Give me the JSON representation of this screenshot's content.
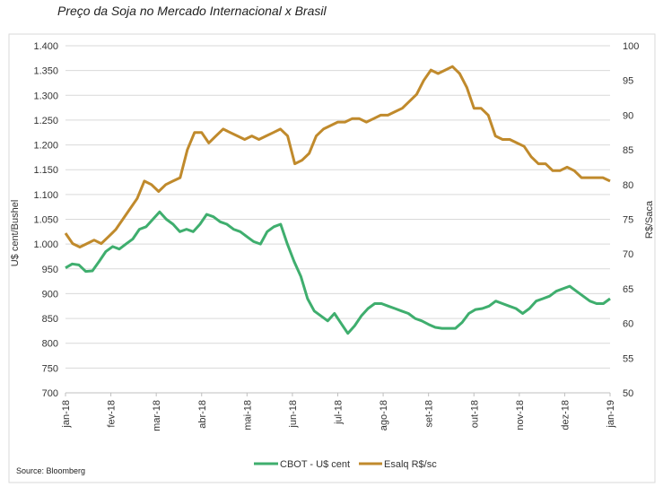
{
  "chart_data": {
    "type": "line",
    "title": "Preço da Soja no Mercado Internacional x Brasil",
    "source": "Source: Bloomberg",
    "ylabel_left": "U$ cent/Bushel",
    "ylabel_right": "R$/Saca",
    "ylim_left": [
      700,
      1400
    ],
    "ylim_right": [
      50,
      100
    ],
    "yticks_left": [
      "700",
      "750",
      "800",
      "850",
      "900",
      "950",
      "1.000",
      "1.050",
      "1.100",
      "1.150",
      "1.200",
      "1.250",
      "1.300",
      "1.350",
      "1.400"
    ],
    "yticks_right": [
      "50",
      "55",
      "60",
      "65",
      "70",
      "75",
      "80",
      "85",
      "90",
      "95",
      "100"
    ],
    "xticks": [
      "jan-18",
      "fev-18",
      "mar-18",
      "abr-18",
      "mai-18",
      "jun-18",
      "jul-18",
      "ago-18",
      "set-18",
      "out-18",
      "nov-18",
      "dez-18",
      "jan-19"
    ],
    "grid": true,
    "legend": "bottom",
    "series": [
      {
        "name": "CBOT - U$ cent",
        "color": "#3fae6e",
        "axis": "left",
        "values": [
          952,
          960,
          958,
          945,
          946,
          965,
          985,
          995,
          990,
          1000,
          1010,
          1030,
          1035,
          1050,
          1065,
          1050,
          1040,
          1025,
          1030,
          1025,
          1040,
          1060,
          1055,
          1045,
          1040,
          1030,
          1025,
          1015,
          1005,
          1000,
          1025,
          1035,
          1040,
          1000,
          965,
          935,
          890,
          865,
          855,
          845,
          860,
          840,
          820,
          835,
          855,
          870,
          880,
          880,
          875,
          870,
          865,
          860,
          850,
          845,
          838,
          832,
          830,
          830,
          830,
          842,
          860,
          868,
          870,
          875,
          885,
          880,
          875,
          870,
          860,
          870,
          885,
          890,
          895,
          905,
          910,
          915,
          905,
          895,
          885,
          880,
          880,
          890
        ]
      },
      {
        "name": "Esalq R$/sc",
        "color": "#c08a2c",
        "axis": "right",
        "values": [
          73,
          71.5,
          71,
          71.5,
          72,
          71.5,
          72.5,
          73.5,
          75,
          76.5,
          78,
          80.5,
          80,
          79,
          80,
          80.5,
          81,
          85,
          87.5,
          87.5,
          86,
          87,
          88,
          87.5,
          87,
          86.5,
          87,
          86.5,
          87,
          87.5,
          88,
          87,
          83,
          83.5,
          84.5,
          87,
          88,
          88.5,
          89,
          89,
          89.5,
          89.5,
          89,
          89.5,
          90,
          90,
          90.5,
          91,
          92,
          93,
          95,
          96.5,
          96,
          96.5,
          97,
          96,
          94,
          91,
          91,
          90,
          87,
          86.5,
          86.5,
          86,
          85.5,
          84,
          83,
          83,
          82,
          82,
          82.5,
          82,
          81,
          81,
          81,
          81,
          80.5
        ]
      }
    ]
  },
  "legend": {
    "cbot_label": "CBOT - U$ cent",
    "esalq_label": "Esalq R$/sc"
  }
}
